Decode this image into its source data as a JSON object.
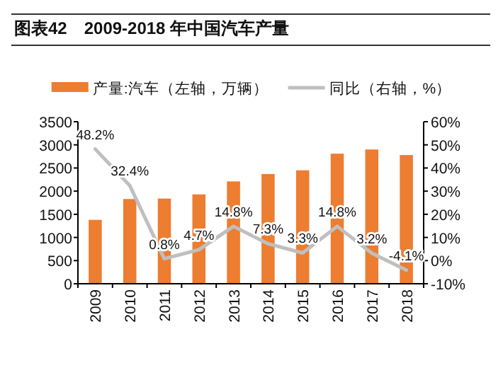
{
  "chart_data": {
    "type": "bar",
    "title": "图表42　2009-2018 年中国汽车产量",
    "categories": [
      "2009",
      "2010",
      "2011",
      "2012",
      "2013",
      "2014",
      "2015",
      "2016",
      "2017",
      "2018"
    ],
    "series": [
      {
        "name": "产量:汽车（左轴，万辆）",
        "color": "#ed7d31",
        "values": [
          1380,
          1830,
          1840,
          1930,
          2210,
          2370,
          2450,
          2810,
          2900,
          2780
        ]
      },
      {
        "name": "同比（右轴，%）",
        "type": "line",
        "axis": "y2",
        "color": "#bfbfbf",
        "values": [
          48.2,
          32.4,
          0.8,
          4.7,
          14.8,
          7.3,
          3.3,
          14.8,
          3.2,
          -4.1
        ],
        "value_labels": [
          "48.2%",
          "32.4%",
          "0.8%",
          "4.7%",
          "14.8%",
          "7.3%",
          "3.3%",
          "14.8%",
          "3.2%",
          "-4.1%"
        ]
      }
    ],
    "ylim": [
      0,
      3500
    ],
    "yticks": [
      0,
      500,
      1000,
      1500,
      2000,
      2500,
      3000,
      3500
    ],
    "y2lim": [
      -10,
      60
    ],
    "y2ticks": [
      {
        "value": -10,
        "label": "-10%"
      },
      {
        "value": 0,
        "label": "0%"
      },
      {
        "value": 10,
        "label": "10%"
      },
      {
        "value": 20,
        "label": "20%"
      },
      {
        "value": 30,
        "label": "30%"
      },
      {
        "value": 40,
        "label": "40%"
      },
      {
        "value": 50,
        "label": "50%"
      },
      {
        "value": 60,
        "label": "60%"
      }
    ],
    "legend": "top",
    "grid": false,
    "marker": "none",
    "line_style": "solid"
  }
}
